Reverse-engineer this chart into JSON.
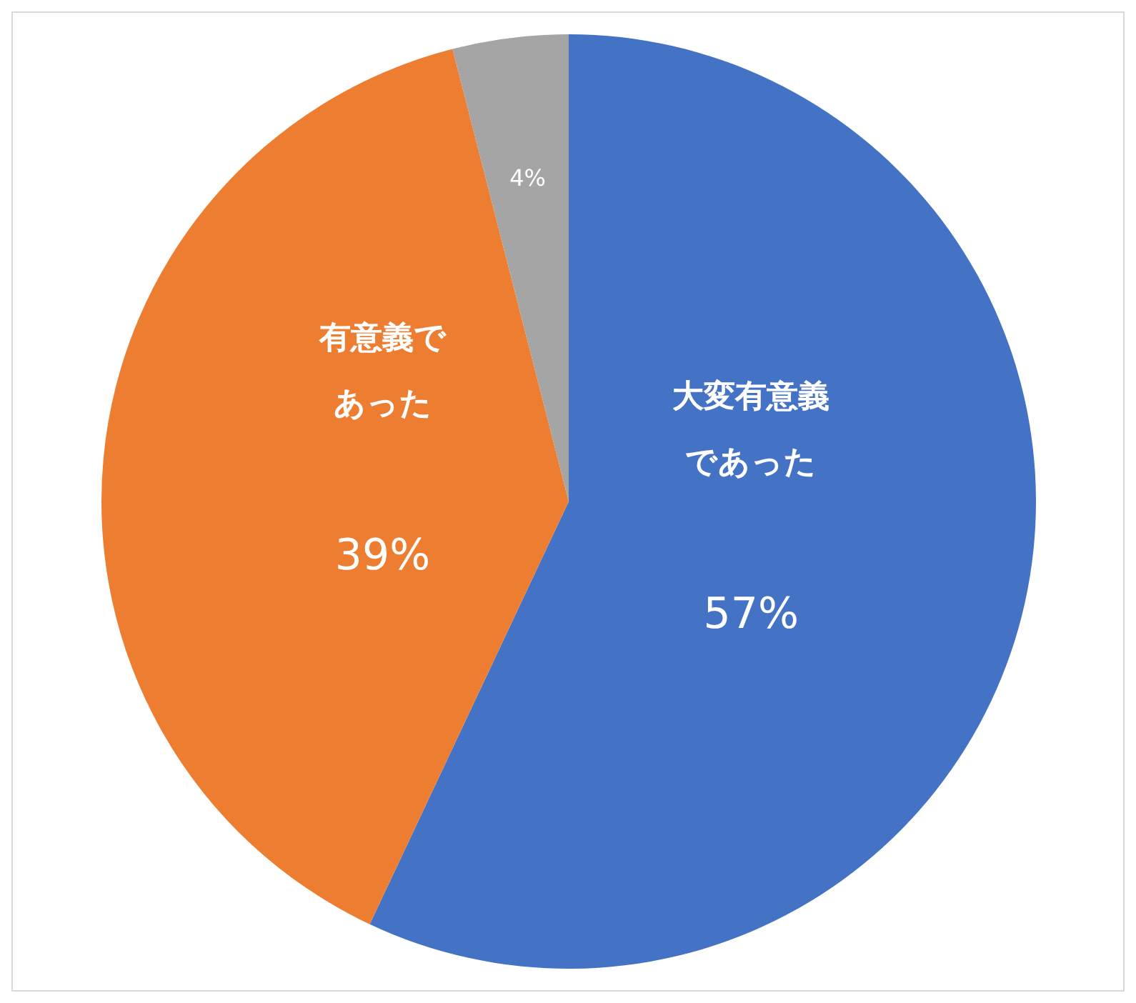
{
  "chart_data": {
    "type": "pie",
    "categories": [
      "大変有意義であった",
      "有意義であった",
      null
    ],
    "values": [
      57,
      39,
      4
    ],
    "colors": [
      "#4472c4",
      "#ed7d31",
      "#a5a5a5"
    ],
    "value_labels": [
      "57%",
      "39%",
      "4%"
    ]
  }
}
